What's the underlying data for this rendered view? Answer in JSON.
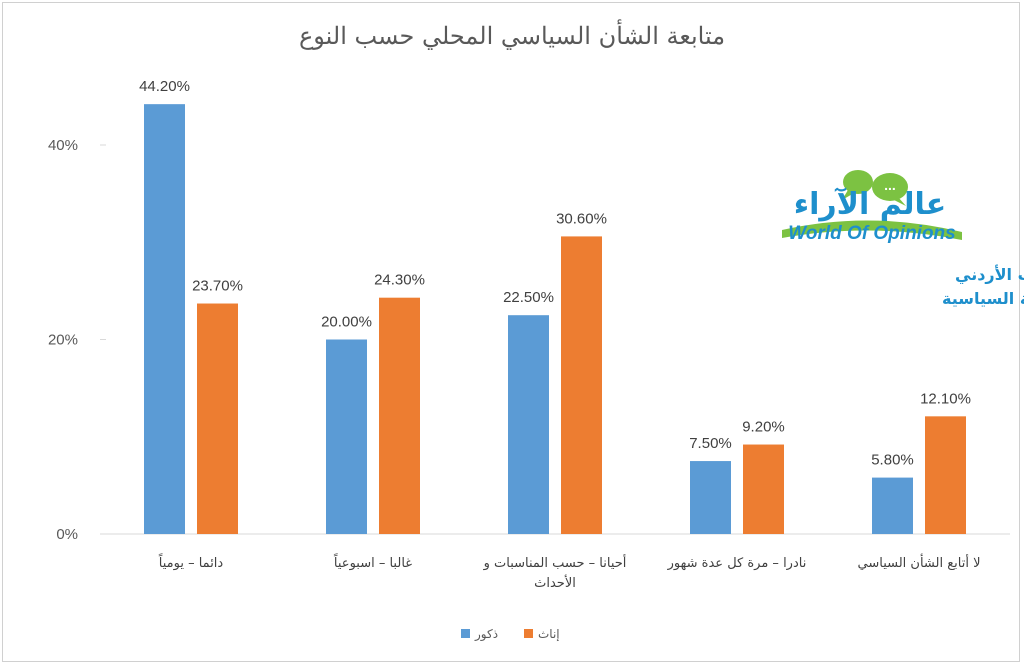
{
  "chart_data": {
    "type": "bar",
    "title": "متابعة الشأن السياسي المحلي حسب النوع",
    "categories": [
      "دائما – يومياً",
      "غالبا – اسبوعياً",
      "أحيانا – حسب المناسبات و الأحداث",
      "نادرا – مرة كل عدة شهور",
      "لا أتابع الشأن السياسي"
    ],
    "category_lines": [
      [
        "دائما – يومياً"
      ],
      [
        "غالبا – اسبوعياً"
      ],
      [
        "أحيانا – حسب المناسبات و",
        "الأحداث"
      ],
      [
        "نادرا – مرة كل عدة شهور"
      ],
      [
        "لا أتابع الشأن السياسي"
      ]
    ],
    "series": [
      {
        "name": "ذكور",
        "values": [
          44.2,
          20.0,
          22.5,
          7.5,
          5.8
        ],
        "labels": [
          "44.20%",
          "20.00%",
          "22.50%",
          "7.50%",
          "5.80%"
        ],
        "color": "#5b9bd5"
      },
      {
        "name": "إناث",
        "values": [
          23.7,
          24.3,
          30.6,
          9.2,
          12.1
        ],
        "labels": [
          "23.70%",
          "24.30%",
          "30.60%",
          "9.20%",
          "12.10%"
        ],
        "color": "#ed7d31"
      }
    ],
    "y_ticks": [
      0,
      20,
      40
    ],
    "y_tick_labels": [
      "0%",
      "20%",
      "40%"
    ],
    "ylim": [
      0,
      45
    ],
    "grid": false,
    "legend_position": "bottom"
  },
  "logo": {
    "arabic": "عالم الآراء",
    "english": "World Of Opinions",
    "bubble_text": "...",
    "green": "#7cc242",
    "blue": "#1e8fcc"
  },
  "subtitle": {
    "line1": "استطلاع الشباب الأردني",
    "line2": "والمشاركة السياسية"
  }
}
